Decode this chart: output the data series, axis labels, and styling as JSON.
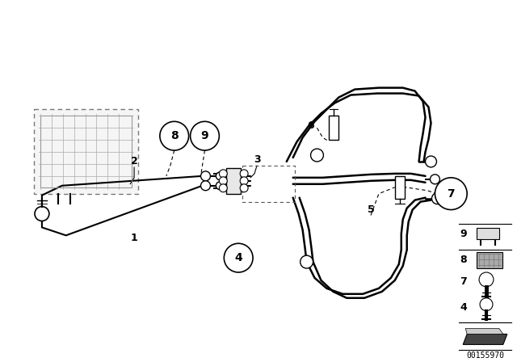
{
  "bg_color": "#ffffff",
  "line_color": "#000000",
  "fig_width": 6.4,
  "fig_height": 4.48,
  "dpi": 100,
  "watermark": "00155970"
}
